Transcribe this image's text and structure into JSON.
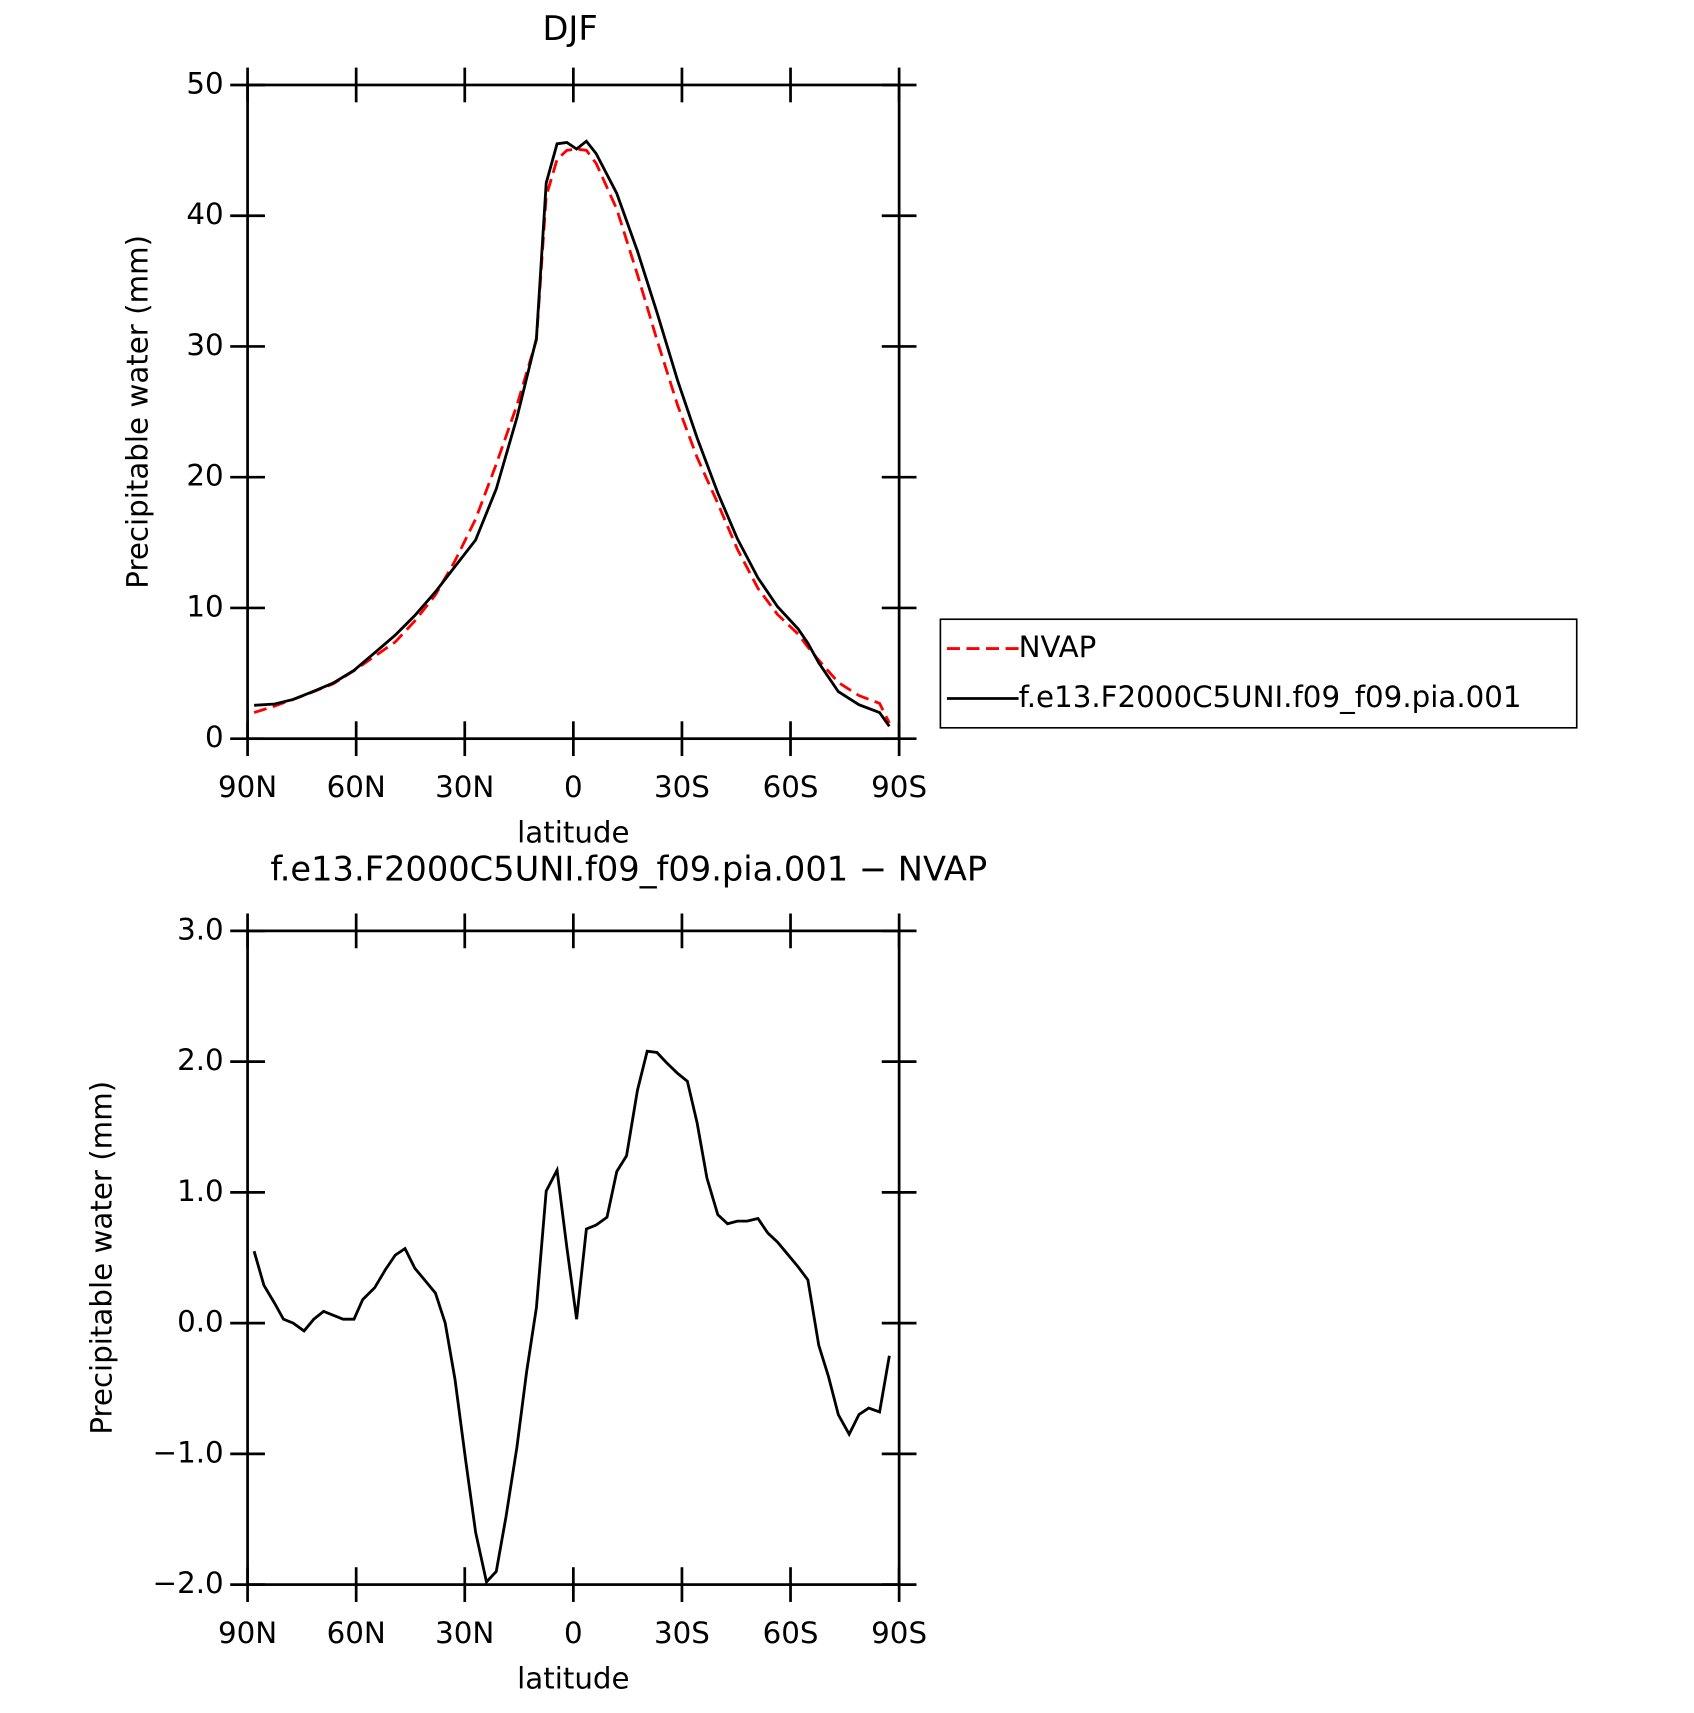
{
  "chart_data": [
    {
      "type": "line",
      "title": "DJF",
      "xlabel": "latitude",
      "ylabel": "Precipitable water (mm)",
      "x": [
        88.2,
        82.5,
        77.4,
        71.7,
        66.3,
        60.6,
        54.9,
        49.2,
        43.8,
        38.1,
        32.7,
        27,
        21.3,
        15.6,
        10.2,
        7.5,
        4.5,
        1.8,
        -0.9,
        -3.6,
        -6.3,
        -12,
        -17.7,
        -23.1,
        -28.8,
        -34.2,
        -39.9,
        -45.3,
        -51,
        -56.4,
        -62.1,
        -64.8,
        -67.8,
        -73.2,
        -78.9,
        -84.6,
        -87.3
      ],
      "series": [
        {
          "name": "NVAP",
          "color": "#ff0000",
          "dash": true,
          "values": [
            2.0,
            2.5,
            3.0,
            3.6,
            4.2,
            5.2,
            6.3,
            7.4,
            9.0,
            11.0,
            13.6,
            16.8,
            21.0,
            25.5,
            30.5,
            41.5,
            44.3,
            45.0,
            45.1,
            45.0,
            44.0,
            40.5,
            35.5,
            30.5,
            25.5,
            21.5,
            18.0,
            14.5,
            11.5,
            9.5,
            8.0,
            7.0,
            6.0,
            4.3,
            3.3,
            2.7,
            1.2
          ]
        },
        {
          "name": "f.e13.F2000C5UNI.f09_f09.pia.001",
          "color": "#000000",
          "dash": false,
          "values": [
            2.55,
            2.65,
            3.0,
            3.63,
            4.26,
            5.23,
            6.57,
            7.92,
            9.42,
            11.23,
            13.17,
            15.2,
            19.1,
            24.55,
            30.62,
            42.5,
            45.5,
            45.6,
            45.1,
            45.7,
            44.75,
            41.7,
            37.3,
            32.6,
            27.4,
            23.0,
            18.8,
            15.3,
            12.3,
            10.1,
            8.4,
            7.3,
            5.8,
            3.6,
            2.6,
            2.0,
            0.95
          ]
        }
      ],
      "xlim": [
        90,
        -90
      ],
      "xticks": [
        {
          "value": 90,
          "label": "90N"
        },
        {
          "value": 60,
          "label": "60N"
        },
        {
          "value": 30,
          "label": "30N"
        },
        0,
        {
          "value": -30,
          "label": "30S"
        },
        {
          "value": -60,
          "label": "60S"
        },
        {
          "value": -90,
          "label": "90S"
        }
      ],
      "ylim": [
        0,
        50
      ],
      "yticks": [
        0,
        10,
        20,
        30,
        40,
        50
      ],
      "grid": false,
      "legend": "outside right"
    },
    {
      "type": "line",
      "title": "f.e13.F2000C5UNI.f09_f09.pia.001 − NVAP",
      "xlabel": "latitude",
      "ylabel": "Precipitable water (mm)",
      "x": [
        88.2,
        85.5,
        82.5,
        80.1,
        77.4,
        74.4,
        71.7,
        69.0,
        66.3,
        63.6,
        60.6,
        58.2,
        54.9,
        51.9,
        49.2,
        46.5,
        43.8,
        40.8,
        38.1,
        35.4,
        32.7,
        29.7,
        27.0,
        24.0,
        21.3,
        18.6,
        15.6,
        12.9,
        10.2,
        7.5,
        4.5,
        1.8,
        -0.9,
        -3.6,
        -6.3,
        -9.3,
        -12.0,
        -14.7,
        -17.7,
        -20.4,
        -23.1,
        -25.8,
        -28.8,
        -31.5,
        -34.2,
        -36.9,
        -39.9,
        -42.6,
        -45.3,
        -48.0,
        -51.0,
        -53.7,
        -56.4,
        -59.1,
        -62.1,
        -64.8,
        -67.8,
        -70.5,
        -73.2,
        -76.2,
        -78.9,
        -81.6,
        -84.6,
        -87.3
      ],
      "values": [
        0.55,
        0.29,
        0.15,
        0.03,
        0.0,
        -0.06,
        0.03,
        0.09,
        0.06,
        0.03,
        0.03,
        0.18,
        0.27,
        0.41,
        0.52,
        0.57,
        0.42,
        0.32,
        0.23,
        0.0,
        -0.43,
        -1.06,
        -1.6,
        -1.98,
        -1.9,
        -1.48,
        -0.95,
        -0.37,
        0.12,
        1.01,
        1.17,
        0.58,
        0.03,
        0.72,
        0.75,
        0.81,
        1.16,
        1.28,
        1.78,
        2.08,
        2.07,
        1.99,
        1.91,
        1.85,
        1.53,
        1.11,
        0.83,
        0.76,
        0.78,
        0.78,
        0.8,
        0.69,
        0.62,
        0.53,
        0.43,
        0.33,
        -0.17,
        -0.41,
        -0.7,
        -0.85,
        -0.7,
        -0.65,
        -0.68,
        -0.25
      ],
      "color": "#000000",
      "xlim": [
        90,
        -90
      ],
      "xticks": [
        {
          "value": 90,
          "label": "90N"
        },
        {
          "value": 60,
          "label": "60N"
        },
        {
          "value": 30,
          "label": "30N"
        },
        0,
        {
          "value": -30,
          "label": "30S"
        },
        {
          "value": -60,
          "label": "60S"
        },
        {
          "value": -90,
          "label": "90S"
        }
      ],
      "ylim": [
        -2,
        3
      ],
      "yticks": [
        {
          "value": -2,
          "label": "−2.0"
        },
        {
          "value": -1,
          "label": "−1.0"
        },
        {
          "value": 0,
          "label": "0.0"
        },
        {
          "value": 1,
          "label": "1.0"
        },
        {
          "value": 2,
          "label": "2.0"
        },
        {
          "value": 3,
          "label": "3.0"
        }
      ],
      "grid": false
    }
  ]
}
